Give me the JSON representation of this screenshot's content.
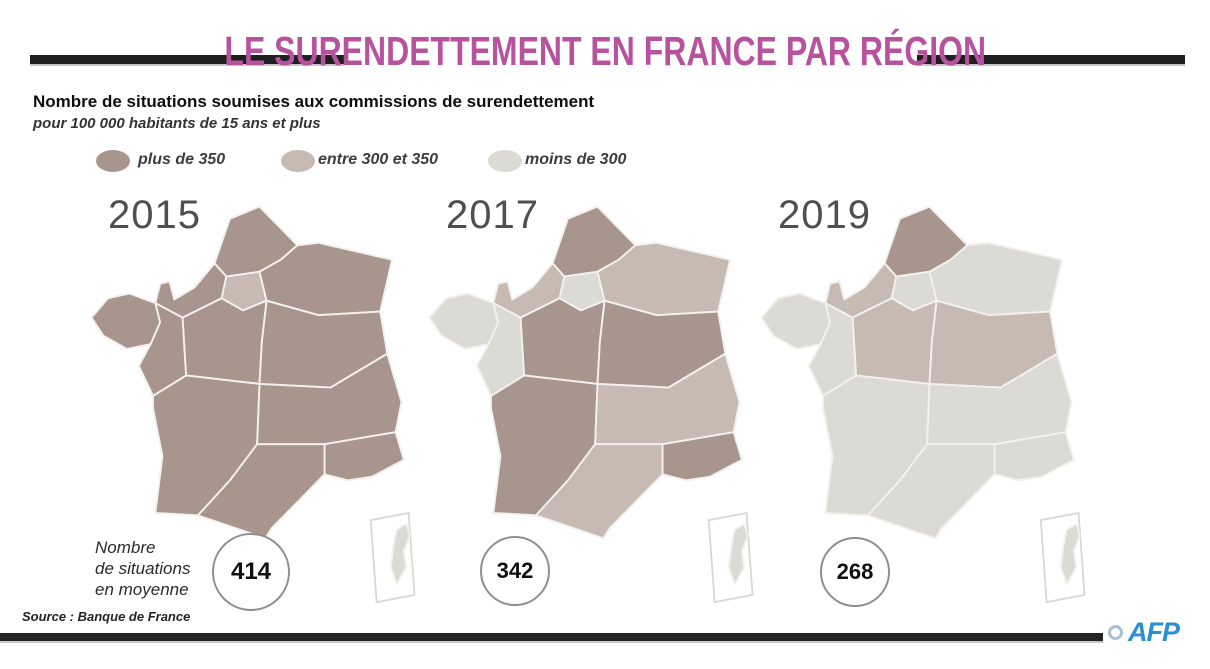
{
  "header": {
    "title": "LE SURENDETTEMENT EN FRANCE PAR RÉGION",
    "subtitle_bold": "Nombre de situations soumises aux commissions de surendettement",
    "subtitle_italic": "pour 100 000 habitants de 15 ans et plus"
  },
  "colors": {
    "accent_pink": "#b7539e",
    "afp_blue": "#2b8fd6",
    "category_plus_de_350": "#a8968e",
    "category_entre_300_350": "#c6bab2",
    "category_moins_de_300": "#dbdad5",
    "map_border": "#f3f1ee"
  },
  "legend": {
    "items": [
      {
        "key": "plus",
        "label": "plus de 350",
        "color": "#a8968e"
      },
      {
        "key": "entre",
        "label": "entre 300 et 350",
        "color": "#c6bab2"
      },
      {
        "key": "moins",
        "label": "moins de 300",
        "color": "#dbdad5"
      }
    ]
  },
  "avg_caption": [
    "Nombre",
    "de situations",
    "en moyenne"
  ],
  "maps": [
    {
      "year": "2015",
      "average": "414",
      "regions": {
        "hdf": "plus",
        "normandie": "plus",
        "idf": "entre",
        "grand_est": "plus",
        "bretagne": "plus",
        "pays_loire": "plus",
        "centre": "plus",
        "bfc": "plus",
        "nouvelle_aquitaine": "plus",
        "aura": "plus",
        "occitanie": "plus",
        "paca": "plus",
        "corse": "moins"
      }
    },
    {
      "year": "2017",
      "average": "342",
      "regions": {
        "hdf": "plus",
        "normandie": "entre",
        "idf": "moins",
        "grand_est": "entre",
        "bretagne": "moins",
        "pays_loire": "moins",
        "centre": "plus",
        "bfc": "plus",
        "nouvelle_aquitaine": "plus",
        "aura": "entre",
        "occitanie": "entre",
        "paca": "plus",
        "corse": "moins"
      }
    },
    {
      "year": "2019",
      "average": "268",
      "regions": {
        "hdf": "plus",
        "normandie": "entre",
        "idf": "moins",
        "grand_est": "moins",
        "bretagne": "moins",
        "pays_loire": "moins",
        "centre": "entre",
        "bfc": "entre",
        "nouvelle_aquitaine": "moins",
        "aura": "moins",
        "occitanie": "moins",
        "paca": "moins",
        "corse": "moins"
      }
    }
  ],
  "footer": {
    "source": "Source : Banque de France",
    "credit_symbol": "©",
    "credit_text": "AFP"
  },
  "chart_data": {
    "type": "heatmap",
    "subtype": "choropleth-map-series",
    "title": "Nombre de situations soumises aux commissions de surendettement",
    "unit": "pour 100 000 habitants de 15 ans et plus",
    "years": [
      "2015",
      "2017",
      "2019"
    ],
    "national_averages": [
      414,
      342,
      268
    ],
    "national_averages_label": "Nombre de situations en moyenne",
    "categories": [
      "plus de 350",
      "entre 300 et 350",
      "moins de 300"
    ],
    "legend_position": "top",
    "regions": [
      {
        "name": "Hauts-de-France",
        "values": [
          "plus de 350",
          "plus de 350",
          "plus de 350"
        ]
      },
      {
        "name": "Normandie",
        "values": [
          "plus de 350",
          "entre 300 et 350",
          "entre 300 et 350"
        ]
      },
      {
        "name": "Île-de-France",
        "values": [
          "entre 300 et 350",
          "moins de 300",
          "moins de 300"
        ]
      },
      {
        "name": "Grand Est",
        "values": [
          "plus de 350",
          "entre 300 et 350",
          "moins de 300"
        ]
      },
      {
        "name": "Bretagne",
        "values": [
          "plus de 350",
          "moins de 300",
          "moins de 300"
        ]
      },
      {
        "name": "Pays de la Loire",
        "values": [
          "plus de 350",
          "moins de 300",
          "moins de 300"
        ]
      },
      {
        "name": "Centre-Val de Loire",
        "values": [
          "plus de 350",
          "plus de 350",
          "entre 300 et 350"
        ]
      },
      {
        "name": "Bourgogne-Franche-Comté",
        "values": [
          "plus de 350",
          "plus de 350",
          "entre 300 et 350"
        ]
      },
      {
        "name": "Nouvelle-Aquitaine",
        "values": [
          "plus de 350",
          "plus de 350",
          "moins de 300"
        ]
      },
      {
        "name": "Auvergne-Rhône-Alpes",
        "values": [
          "plus de 350",
          "entre 300 et 350",
          "moins de 300"
        ]
      },
      {
        "name": "Occitanie",
        "values": [
          "plus de 350",
          "entre 300 et 350",
          "moins de 300"
        ]
      },
      {
        "name": "Provence-Alpes-Côte d'Azur",
        "values": [
          "plus de 350",
          "plus de 350",
          "moins de 300"
        ]
      },
      {
        "name": "Corse",
        "values": [
          "moins de 300",
          "moins de 300",
          "moins de 300"
        ]
      }
    ],
    "source": "Banque de France"
  }
}
